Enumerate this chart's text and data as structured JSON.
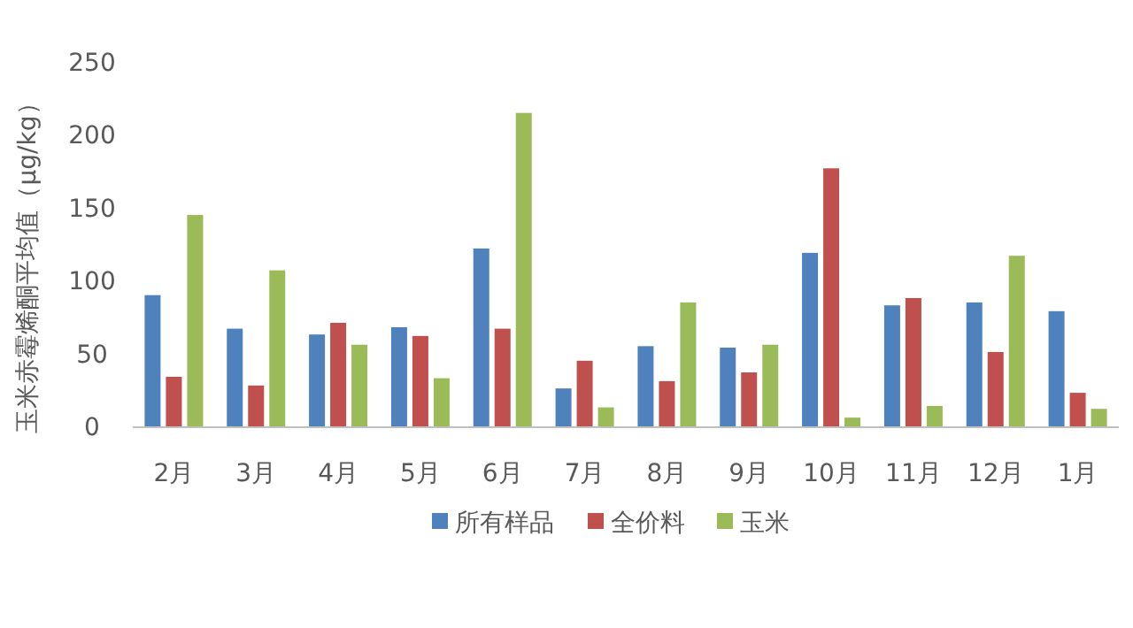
{
  "chart_data": {
    "type": "bar",
    "ylabel": "玉米赤霉烯酮平均值（μg/kg）",
    "categories": [
      "2月",
      "3月",
      "4月",
      "5月",
      "6月",
      "7月",
      "8月",
      "9月",
      "10月",
      "11月",
      "12月",
      "1月"
    ],
    "series": [
      {
        "name": "所有样品",
        "color": "#4f81bd",
        "values": [
          90,
          67,
          63,
          68,
          122,
          26,
          55,
          54,
          119,
          83,
          85,
          79
        ]
      },
      {
        "name": "全价料",
        "color": "#c0504d",
        "values": [
          34,
          28,
          71,
          62,
          67,
          45,
          31,
          37,
          177,
          88,
          51,
          23
        ]
      },
      {
        "name": "玉米",
        "color": "#9bbb59",
        "values": [
          145,
          107,
          56,
          33,
          215,
          13,
          85,
          56,
          6,
          14,
          117,
          12
        ]
      }
    ],
    "ylim": [
      0,
      250
    ],
    "yticks": [
      0,
      50,
      100,
      150,
      200,
      250
    ],
    "grid": false,
    "legend": "bottom"
  }
}
